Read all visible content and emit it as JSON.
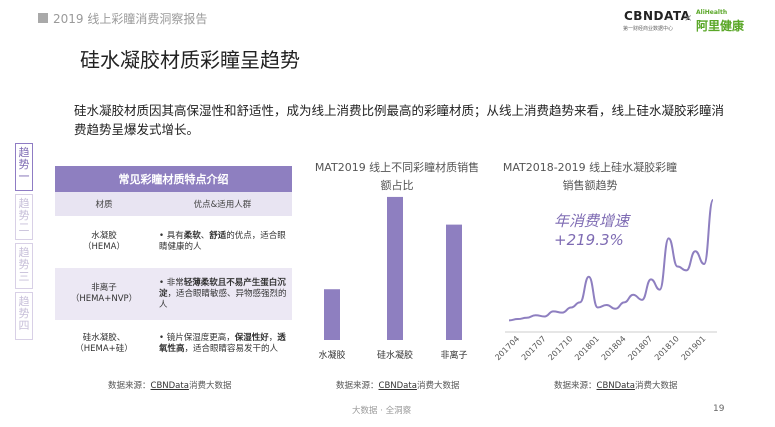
{
  "header": {
    "report_title": "2019 线上彩瞳消费洞察报告"
  },
  "logos": {
    "cbn": "CBNDATA",
    "cbn_sub": "第一财经商业数据中心",
    "separator": "×",
    "ali_en": "AliHealth",
    "ali_cn": "阿里健康"
  },
  "title": "硅水凝胶材质彩瞳呈趋势",
  "intro": "硅水凝胶材质因其高保湿性和舒适性，成为线上消费比例最高的彩瞳材质；从线上消费趋势来看，线上硅水凝胶彩瞳消费趋势呈爆发式增长。",
  "side_tabs": [
    {
      "label": "趋势一",
      "active": true
    },
    {
      "label": "趋势二",
      "active": false
    },
    {
      "label": "趋势三",
      "active": false
    },
    {
      "label": "趋势四",
      "active": false
    }
  ],
  "table": {
    "caption": "常见彩瞳材质特点介绍",
    "headers": [
      "材质",
      "优点&适用人群"
    ],
    "rows": [
      {
        "material": "水凝胶\n（HEMA）",
        "desc": "• 具有柔软、舒适的优点，适合眼睛健康的人"
      },
      {
        "material": "非离子\n（HEMA+NVP）",
        "desc": "• 非常轻薄柔软且不易产生蛋白沉淀，适合眼睛敏感、异物感强烈的人"
      },
      {
        "material": "硅水凝胶、\n（HEMA+硅）",
        "desc": "• 镜片保湿度更高，保湿性好，透氧性高，适合眼睛容易发干的人"
      }
    ]
  },
  "source": {
    "prefix": "数据来源：",
    "name": "CBNData",
    "suffix": "消费大数据"
  },
  "chart_data": [
    {
      "type": "bar",
      "title": "MAT2019 线上不同彩瞳材质销售额占比",
      "categories": [
        "水凝胶",
        "硅水凝胶",
        "非离子"
      ],
      "values": [
        0.22,
        0.62,
        0.5
      ],
      "color": "#8e7fc0"
    },
    {
      "type": "line",
      "title": "MAT2018-2019 线上硅水凝胶彩瞳销售额趋势",
      "x": [
        "201704",
        "201705",
        "201706",
        "201707",
        "201708",
        "201709",
        "201710",
        "201711",
        "201712",
        "201801",
        "201802",
        "201803",
        "201804",
        "201805",
        "201806",
        "201807",
        "201808",
        "201809",
        "201810",
        "201811",
        "201812",
        "201901",
        "201902",
        "201903"
      ],
      "tick_labels": [
        "201704",
        "201707",
        "201710",
        "201801",
        "201804",
        "201807",
        "201810",
        "201901"
      ],
      "values": [
        0.06,
        0.07,
        0.08,
        0.1,
        0.09,
        0.13,
        0.12,
        0.16,
        0.2,
        0.4,
        0.16,
        0.18,
        0.15,
        0.2,
        0.26,
        0.22,
        0.38,
        0.3,
        0.7,
        0.48,
        0.45,
        0.6,
        0.5,
        1.0
      ],
      "annotation": "年消费增速\n+219.3%",
      "color": "#8e7fc0"
    }
  ],
  "footer": "大数据 · 全洞察",
  "page_number": "19"
}
